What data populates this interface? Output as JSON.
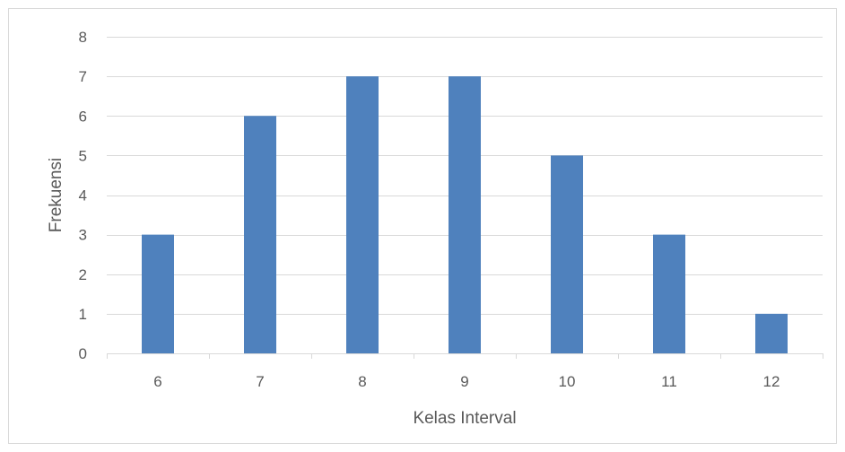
{
  "chart_data": {
    "type": "bar",
    "title": "",
    "xlabel": "Kelas Interval",
    "ylabel": "Frekuensi",
    "categories": [
      "6",
      "7",
      "8",
      "9",
      "10",
      "11",
      "12"
    ],
    "values": [
      3,
      6,
      7,
      7,
      5,
      3,
      1
    ],
    "ylim": [
      0,
      8
    ],
    "yticks": [
      0,
      1,
      2,
      3,
      4,
      5,
      6,
      7,
      8
    ],
    "grid": true,
    "legend": "none",
    "bar_color": "#4f81bd",
    "grid_color": "#d9d9d9"
  }
}
